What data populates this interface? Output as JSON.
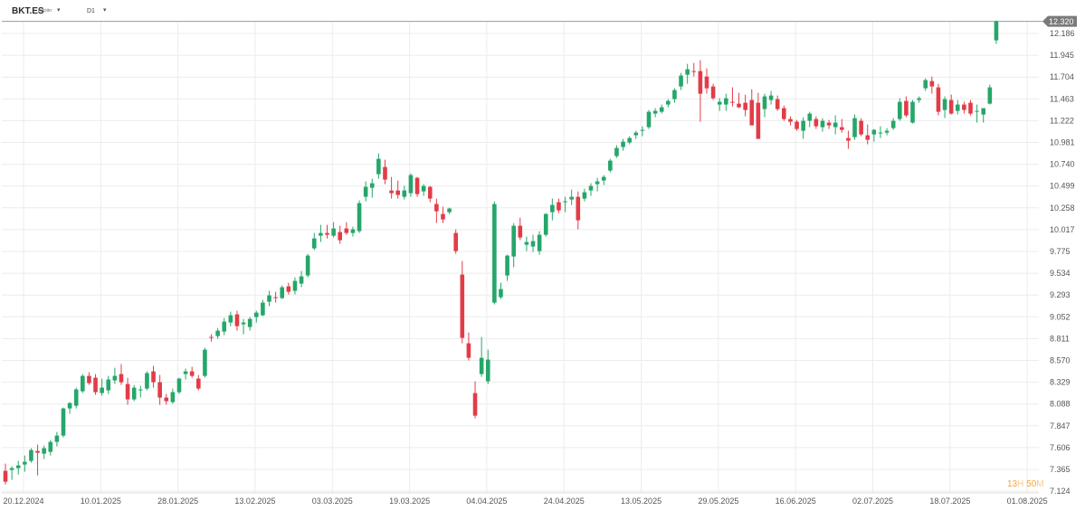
{
  "header": {
    "symbol": "BKT.ES",
    "subtitle": "Acción",
    "timeframe": "D1"
  },
  "countdown": {
    "hours": "13",
    "h_unit": "H",
    "minutes": "50",
    "m_unit": "M"
  },
  "colors": {
    "up": "#26a66a",
    "down": "#e23c48",
    "grid": "#ececec",
    "text": "#555555",
    "price_tag": "#7a7a7a"
  },
  "chart_data": {
    "type": "candlestick",
    "y_ticks": [
      "12.186",
      "11.945",
      "11.704",
      "11.463",
      "11.222",
      "10.981",
      "10.740",
      "10.499",
      "10.258",
      "10.017",
      "9.775",
      "9.534",
      "9.293",
      "9.052",
      "8.811",
      "8.570",
      "8.329",
      "8.088",
      "7.847",
      "7.606",
      "7.365",
      "7.124"
    ],
    "ylim": [
      7.124,
      12.4
    ],
    "x_ticks": [
      "20.12.2024",
      "10.01.2025",
      "28.01.2025",
      "13.02.2025",
      "03.03.2025",
      "19.03.2025",
      "04.04.2025",
      "24.04.2025",
      "13.05.2025",
      "29.05.2025",
      "16.06.2025",
      "02.07.2025",
      "18.07.2025",
      "01.08.2025"
    ],
    "x_tick_index": [
      0,
      12,
      24,
      36,
      48,
      60,
      72,
      84,
      96,
      108,
      120,
      132,
      144,
      156
    ],
    "current_price": "12.320",
    "current_value": 12.32,
    "candles": [
      [
        7.35,
        7.43,
        7.2,
        7.23
      ],
      [
        7.36,
        7.4,
        7.25,
        7.38
      ],
      [
        7.38,
        7.46,
        7.31,
        7.41
      ],
      [
        7.42,
        7.52,
        7.34,
        7.45
      ],
      [
        7.46,
        7.6,
        7.44,
        7.58
      ],
      [
        7.57,
        7.64,
        7.3,
        7.55
      ],
      [
        7.54,
        7.63,
        7.48,
        7.6
      ],
      [
        7.56,
        7.69,
        7.52,
        7.67
      ],
      [
        7.67,
        7.78,
        7.62,
        7.74
      ],
      [
        7.74,
        8.05,
        7.72,
        8.04
      ],
      [
        8.04,
        8.11,
        7.98,
        8.1
      ],
      [
        8.07,
        8.27,
        8.04,
        8.25
      ],
      [
        8.23,
        8.42,
        8.21,
        8.4
      ],
      [
        8.4,
        8.44,
        8.3,
        8.32
      ],
      [
        8.38,
        8.42,
        8.19,
        8.22
      ],
      [
        8.21,
        8.37,
        8.18,
        8.27
      ],
      [
        8.24,
        8.4,
        8.2,
        8.36
      ],
      [
        8.35,
        8.49,
        8.31,
        8.4
      ],
      [
        8.42,
        8.53,
        8.3,
        8.33
      ],
      [
        8.31,
        8.38,
        8.08,
        8.14
      ],
      [
        8.14,
        8.3,
        8.12,
        8.27
      ],
      [
        8.24,
        8.29,
        8.16,
        8.25
      ],
      [
        8.26,
        8.45,
        8.24,
        8.43
      ],
      [
        8.45,
        8.51,
        8.27,
        8.33
      ],
      [
        8.33,
        8.41,
        8.08,
        8.16
      ],
      [
        8.16,
        8.2,
        8.08,
        8.12
      ],
      [
        8.11,
        8.26,
        8.09,
        8.22
      ],
      [
        8.22,
        8.38,
        8.2,
        8.37
      ],
      [
        8.42,
        8.48,
        8.36,
        8.45
      ],
      [
        8.45,
        8.5,
        8.38,
        8.4
      ],
      [
        8.37,
        8.41,
        8.24,
        8.26
      ],
      [
        8.4,
        8.71,
        8.38,
        8.69
      ],
      [
        8.83,
        8.86,
        8.78,
        8.82
      ],
      [
        8.84,
        8.93,
        8.81,
        8.9
      ],
      [
        8.89,
        9.04,
        8.85,
        9.0
      ],
      [
        8.99,
        9.11,
        8.95,
        9.07
      ],
      [
        9.08,
        9.12,
        8.9,
        8.95
      ],
      [
        8.97,
        9.03,
        8.86,
        8.99
      ],
      [
        8.94,
        9.05,
        8.9,
        9.03
      ],
      [
        9.05,
        9.12,
        8.99,
        9.1
      ],
      [
        9.07,
        9.24,
        9.06,
        9.21
      ],
      [
        9.22,
        9.34,
        9.17,
        9.29
      ],
      [
        9.27,
        9.33,
        9.21,
        9.26
      ],
      [
        9.26,
        9.4,
        9.25,
        9.38
      ],
      [
        9.39,
        9.43,
        9.3,
        9.33
      ],
      [
        9.34,
        9.49,
        9.3,
        9.45
      ],
      [
        9.42,
        9.56,
        9.38,
        9.5
      ],
      [
        9.51,
        9.75,
        9.49,
        9.73
      ],
      [
        9.81,
        9.98,
        9.79,
        9.92
      ],
      [
        9.95,
        10.07,
        9.88,
        9.98
      ],
      [
        9.98,
        10.07,
        9.92,
        9.96
      ],
      [
        9.95,
        10.1,
        9.93,
        10.03
      ],
      [
        9.99,
        10.06,
        9.86,
        9.9
      ],
      [
        10.03,
        10.1,
        9.96,
        9.98
      ],
      [
        9.98,
        10.05,
        9.94,
        10.02
      ],
      [
        10.0,
        10.34,
        9.98,
        10.31
      ],
      [
        10.38,
        10.55,
        10.33,
        10.49
      ],
      [
        10.48,
        10.58,
        10.37,
        10.53
      ],
      [
        10.63,
        10.86,
        10.58,
        10.8
      ],
      [
        10.71,
        10.79,
        10.52,
        10.57
      ],
      [
        10.45,
        10.6,
        10.36,
        10.42
      ],
      [
        10.45,
        10.56,
        10.36,
        10.4
      ],
      [
        10.38,
        10.5,
        10.35,
        10.45
      ],
      [
        10.42,
        10.64,
        10.38,
        10.62
      ],
      [
        10.59,
        10.6,
        10.38,
        10.41
      ],
      [
        10.44,
        10.52,
        10.39,
        10.5
      ],
      [
        10.49,
        10.5,
        10.32,
        10.36
      ],
      [
        10.3,
        10.36,
        10.09,
        10.22
      ],
      [
        10.19,
        10.27,
        10.09,
        10.13
      ],
      [
        10.21,
        10.26,
        10.19,
        10.25
      ],
      [
        9.98,
        10.02,
        9.75,
        9.78
      ],
      [
        9.52,
        9.67,
        8.76,
        8.82
      ],
      [
        8.76,
        8.88,
        8.57,
        8.6
      ],
      [
        8.21,
        8.34,
        7.93,
        7.96
      ],
      [
        8.42,
        8.83,
        8.39,
        8.6
      ],
      [
        8.34,
        8.69,
        8.31,
        8.58
      ],
      [
        9.21,
        10.33,
        9.19,
        10.3
      ],
      [
        9.27,
        9.43,
        9.25,
        9.36
      ],
      [
        9.51,
        9.74,
        9.45,
        9.73
      ],
      [
        9.72,
        10.09,
        9.6,
        10.06
      ],
      [
        10.06,
        10.15,
        9.9,
        9.93
      ],
      [
        9.85,
        9.94,
        9.78,
        9.88
      ],
      [
        9.83,
        9.96,
        9.77,
        9.89
      ],
      [
        9.78,
        10.0,
        9.74,
        9.96
      ],
      [
        9.96,
        10.2,
        9.94,
        10.19
      ],
      [
        10.21,
        10.36,
        10.12,
        10.29
      ],
      [
        10.32,
        10.36,
        10.2,
        10.23
      ],
      [
        10.32,
        10.38,
        10.21,
        10.33
      ],
      [
        10.35,
        10.46,
        10.29,
        10.38
      ],
      [
        10.38,
        10.44,
        10.02,
        10.12
      ],
      [
        10.36,
        10.47,
        10.33,
        10.43
      ],
      [
        10.45,
        10.53,
        10.39,
        10.5
      ],
      [
        10.52,
        10.59,
        10.44,
        10.55
      ],
      [
        10.56,
        10.62,
        10.51,
        10.6
      ],
      [
        10.67,
        10.8,
        10.65,
        10.78
      ],
      [
        10.83,
        10.95,
        10.81,
        10.92
      ],
      [
        10.93,
        11.02,
        10.89,
        10.99
      ],
      [
        10.98,
        11.05,
        10.96,
        11.03
      ],
      [
        11.06,
        11.11,
        11.02,
        11.09
      ],
      [
        11.11,
        11.16,
        11.05,
        11.12
      ],
      [
        11.15,
        11.34,
        11.13,
        11.32
      ],
      [
        11.3,
        11.36,
        11.26,
        11.33
      ],
      [
        11.32,
        11.4,
        11.3,
        11.37
      ],
      [
        11.4,
        11.46,
        11.37,
        11.44
      ],
      [
        11.46,
        11.58,
        11.42,
        11.56
      ],
      [
        11.6,
        11.75,
        11.56,
        11.72
      ],
      [
        11.73,
        11.85,
        11.63,
        11.79
      ],
      [
        11.77,
        11.86,
        11.71,
        11.76
      ],
      [
        11.77,
        11.89,
        11.21,
        11.52
      ],
      [
        11.71,
        11.8,
        11.52,
        11.58
      ],
      [
        11.6,
        11.63,
        11.45,
        11.47
      ],
      [
        11.4,
        11.47,
        11.33,
        11.43
      ],
      [
        11.4,
        11.52,
        11.33,
        11.47
      ],
      [
        11.43,
        11.59,
        11.38,
        11.42
      ],
      [
        11.41,
        11.53,
        11.36,
        11.37
      ],
      [
        11.42,
        11.51,
        11.27,
        11.34
      ],
      [
        11.45,
        11.57,
        11.17,
        11.17
      ],
      [
        11.42,
        11.53,
        11.02,
        11.02
      ],
      [
        11.35,
        11.52,
        11.26,
        11.49
      ],
      [
        11.45,
        11.55,
        11.4,
        11.5
      ],
      [
        11.46,
        11.5,
        11.33,
        11.35
      ],
      [
        11.36,
        11.39,
        11.22,
        11.24
      ],
      [
        11.24,
        11.27,
        11.17,
        11.21
      ],
      [
        11.21,
        11.23,
        11.11,
        11.13
      ],
      [
        11.11,
        11.26,
        11.02,
        11.22
      ],
      [
        11.22,
        11.32,
        11.15,
        11.3
      ],
      [
        11.24,
        11.27,
        11.13,
        11.16
      ],
      [
        11.15,
        11.25,
        11.1,
        11.22
      ],
      [
        11.2,
        11.23,
        11.13,
        11.17
      ],
      [
        11.15,
        11.28,
        11.07,
        11.2
      ],
      [
        11.15,
        11.24,
        11.09,
        11.12
      ],
      [
        11.03,
        11.11,
        10.91,
        11.0
      ],
      [
        11.04,
        11.29,
        11.01,
        11.25
      ],
      [
        11.22,
        11.25,
        11.05,
        11.07
      ],
      [
        11.06,
        11.18,
        10.96,
        11.01
      ],
      [
        11.07,
        11.13,
        10.99,
        11.12
      ],
      [
        11.09,
        11.16,
        11.03,
        11.09
      ],
      [
        11.09,
        11.14,
        11.06,
        11.11
      ],
      [
        11.14,
        11.25,
        11.12,
        11.22
      ],
      [
        11.24,
        11.47,
        11.22,
        11.43
      ],
      [
        11.44,
        11.49,
        11.26,
        11.28
      ],
      [
        11.2,
        11.45,
        11.19,
        11.43
      ],
      [
        11.45,
        11.49,
        11.42,
        11.47
      ],
      [
        11.58,
        11.69,
        11.55,
        11.67
      ],
      [
        11.66,
        11.71,
        11.52,
        11.6
      ],
      [
        11.59,
        11.63,
        11.28,
        11.32
      ],
      [
        11.34,
        11.49,
        11.25,
        11.46
      ],
      [
        11.45,
        11.51,
        11.29,
        11.3
      ],
      [
        11.33,
        11.45,
        11.29,
        11.4
      ],
      [
        11.4,
        11.43,
        11.3,
        11.34
      ],
      [
        11.42,
        11.45,
        11.28,
        11.3
      ],
      [
        11.32,
        11.4,
        11.2,
        11.33
      ],
      [
        11.29,
        11.36,
        11.2,
        11.36
      ],
      [
        11.41,
        11.62,
        11.4,
        11.59
      ],
      [
        12.11,
        12.33,
        12.07,
        12.32
      ]
    ]
  }
}
